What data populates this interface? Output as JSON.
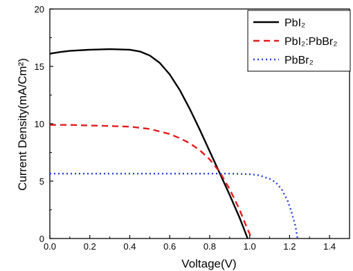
{
  "chart_data": {
    "type": "line",
    "xlabel": "Voltage(V)",
    "ylabel": "Current Density(mA/Cm²)",
    "xlim": [
      0,
      1.5
    ],
    "ylim": [
      0,
      20
    ],
    "x_ticks": [
      "0.0",
      "0.2",
      "0.4",
      "0.6",
      "0.8",
      "1.0",
      "1.2",
      "1.4"
    ],
    "y_ticks": [
      "0",
      "5",
      "10",
      "15",
      "20"
    ],
    "grid": false,
    "legend_position": "top-right",
    "series": [
      {
        "name": "PbI₂",
        "style": "solid",
        "color": "#000000",
        "points": [
          [
            0.0,
            16.1
          ],
          [
            0.05,
            16.25
          ],
          [
            0.1,
            16.35
          ],
          [
            0.2,
            16.45
          ],
          [
            0.3,
            16.5
          ],
          [
            0.4,
            16.45
          ],
          [
            0.45,
            16.3
          ],
          [
            0.5,
            15.95
          ],
          [
            0.55,
            15.3
          ],
          [
            0.6,
            14.3
          ],
          [
            0.65,
            12.95
          ],
          [
            0.7,
            11.3
          ],
          [
            0.75,
            9.5
          ],
          [
            0.8,
            7.6
          ],
          [
            0.85,
            5.7
          ],
          [
            0.9,
            3.8
          ],
          [
            0.95,
            1.8
          ],
          [
            0.99,
            0.0
          ]
        ]
      },
      {
        "name": "PbI₂:PbBr₂",
        "style": "dashed",
        "color": "#e41a1c",
        "points": [
          [
            0.0,
            9.9
          ],
          [
            0.1,
            9.9
          ],
          [
            0.2,
            9.85
          ],
          [
            0.3,
            9.8
          ],
          [
            0.4,
            9.75
          ],
          [
            0.5,
            9.55
          ],
          [
            0.6,
            9.1
          ],
          [
            0.65,
            8.75
          ],
          [
            0.7,
            8.3
          ],
          [
            0.75,
            7.7
          ],
          [
            0.8,
            6.9
          ],
          [
            0.85,
            5.8
          ],
          [
            0.9,
            4.3
          ],
          [
            0.95,
            2.5
          ],
          [
            0.98,
            1.2
          ],
          [
            1.01,
            0.0
          ]
        ]
      },
      {
        "name": "PbBr₂",
        "style": "dotted",
        "color": "#1f3fd6",
        "points": [
          [
            0.0,
            5.65
          ],
          [
            0.2,
            5.65
          ],
          [
            0.4,
            5.65
          ],
          [
            0.6,
            5.65
          ],
          [
            0.8,
            5.65
          ],
          [
            0.9,
            5.65
          ],
          [
            1.0,
            5.6
          ],
          [
            1.05,
            5.5
          ],
          [
            1.1,
            5.2
          ],
          [
            1.13,
            4.9
          ],
          [
            1.16,
            4.3
          ],
          [
            1.19,
            3.3
          ],
          [
            1.21,
            2.3
          ],
          [
            1.23,
            1.0
          ],
          [
            1.24,
            0.0
          ]
        ]
      }
    ]
  }
}
